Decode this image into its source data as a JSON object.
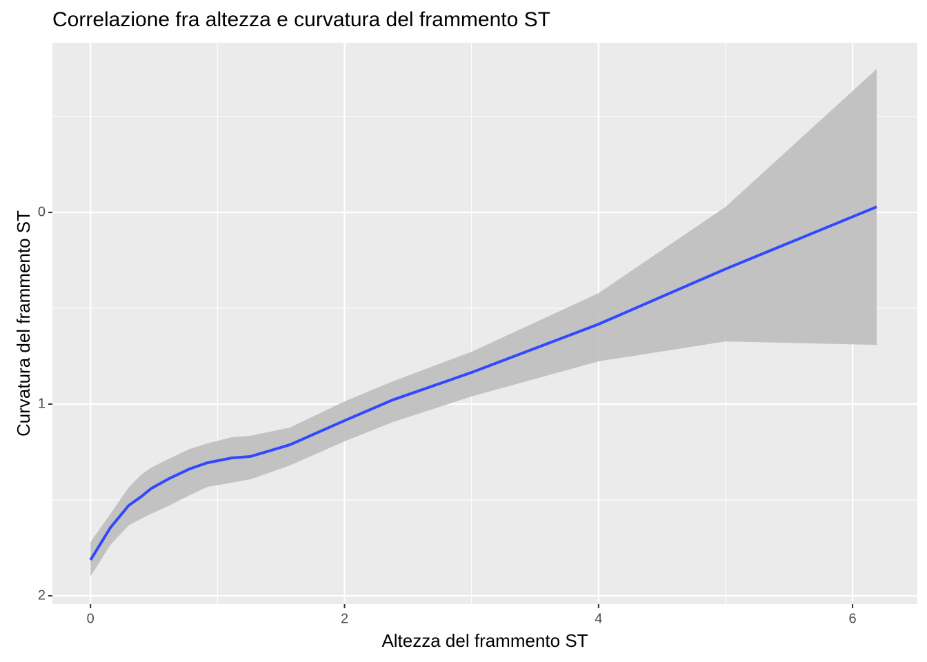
{
  "chart_data": {
    "type": "smooth",
    "title": "Correlazione fra altezza e curvatura del frammento ST",
    "x_label": "Altezza del frammento ST",
    "y_label": "Curvatura del frammento ST",
    "x": [
      0,
      0.157,
      0.3,
      0.4,
      0.48,
      0.62,
      0.78,
      0.92,
      1.11,
      1.26,
      1.57,
      2.0,
      2.38,
      3.0,
      4.0,
      5.0,
      6.19
    ],
    "values": [
      1.813,
      1.644,
      1.529,
      1.482,
      1.439,
      1.388,
      1.338,
      1.306,
      1.281,
      1.273,
      1.212,
      1.086,
      0.978,
      0.835,
      0.583,
      0.295,
      -0.029
    ],
    "band_low": [
      1.719,
      1.572,
      1.435,
      1.367,
      1.331,
      1.284,
      1.234,
      1.205,
      1.173,
      1.165,
      1.122,
      0.986,
      0.881,
      0.727,
      0.421,
      -0.029,
      -0.748
    ],
    "band_high": [
      1.899,
      1.734,
      1.633,
      1.597,
      1.572,
      1.529,
      1.475,
      1.432,
      1.41,
      1.392,
      1.32,
      1.194,
      1.094,
      0.96,
      0.777,
      0.673,
      0.691
    ],
    "color": "#3049ff",
    "band_color": "#bebebe",
    "xlim": [
      -0.3,
      6.51
    ],
    "xticks": [
      0,
      2,
      4,
      6
    ],
    "xminor": [
      1,
      3,
      5
    ],
    "ylim": [
      -0.885,
      2.043
    ],
    "yticks": [
      0,
      1,
      2
    ],
    "yminor": [
      -0.5,
      0.5,
      1.5
    ],
    "y_reversed": true,
    "grid": true
  }
}
